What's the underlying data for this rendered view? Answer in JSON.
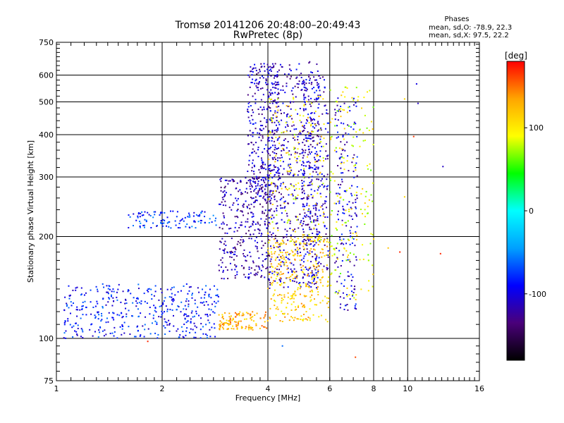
{
  "header": {
    "title_line1": "Tromsø 20141206 20:48:00–20:49:43",
    "title_line2": "RwPretec (8p)"
  },
  "phase_box": {
    "heading": "Phases",
    "line1": "mean, sd,O: -78.9, 22.3",
    "line2": "mean, sd,X:  97.5, 22.2"
  },
  "chart_data": {
    "type": "scatter",
    "title": "Tromsø 20141206 20:48:00–20:49:43",
    "subtitle": "RwPretec (8p)",
    "xlabel": "Frequency [MHz]",
    "ylabel": "Stationary phase Virtual Height [km]",
    "x_scale": "log2",
    "y_scale": "log",
    "xlim": [
      1,
      16
    ],
    "ylim": [
      75,
      750
    ],
    "x_ticks": [
      1,
      2,
      4,
      6,
      8,
      10,
      16
    ],
    "x_tick_labels": [
      "1",
      "2",
      "4",
      "6",
      "8",
      "10",
      "16"
    ],
    "x_major_grid": [
      2,
      4,
      6,
      8,
      10
    ],
    "y_ticks": [
      75,
      100,
      200,
      300,
      400,
      500,
      600,
      750
    ],
    "y_tick_labels": [
      "75",
      "100",
      "200",
      "300",
      "400",
      "500",
      "600",
      "750"
    ],
    "y_major_grid": [
      100,
      200,
      300,
      400,
      500,
      600
    ],
    "grid": true,
    "colorbar": {
      "label": "[deg]",
      "range": [
        -180,
        180
      ],
      "ticks": [
        100,
        0,
        -100
      ],
      "tick_labels": [
        "100",
        "0",
        "-100"
      ],
      "colors": [
        "#000000",
        "#4a007a",
        "#0000ff",
        "#00a0ff",
        "#00ffff",
        "#00ff00",
        "#ffff00",
        "#ffa500",
        "#ff0000"
      ]
    },
    "series": [
      {
        "clusters": [
          {
            "x": [
              1.05,
              2.9
            ],
            "h": [
              100,
              145
            ],
            "phase": -85,
            "n": 420
          },
          {
            "x": [
              1.6,
              2.85
            ],
            "h": [
              212,
              238
            ],
            "phase": -78,
            "n": 110
          },
          {
            "x": [
              2.9,
              4.0
            ],
            "h": [
              150,
              300
            ],
            "phase": -118,
            "n": 320
          },
          {
            "x": [
              3.5,
              4.3
            ],
            "h": [
              250,
              650
            ],
            "phase": -112,
            "n": 320
          },
          {
            "x": [
              4.0,
              5.6
            ],
            "h": [
              140,
              660
            ],
            "phase": -112,
            "n": 560
          },
          {
            "x": [
              5.0,
              5.95
            ],
            "h": [
              150,
              600
            ],
            "phase": -108,
            "n": 260
          },
          {
            "x": [
              6.2,
              7.2
            ],
            "h": [
              120,
              520
            ],
            "phase": -102,
            "n": 180
          }
        ]
      },
      {
        "clusters": [
          {
            "x": [
              2.9,
              4.0
            ],
            "h": [
              106,
              120
            ],
            "phase": 130,
            "n": 120
          },
          {
            "x": [
              4.0,
              6.0
            ],
            "h": [
              112,
              200
            ],
            "phase": 115,
            "n": 320
          },
          {
            "x": [
              4.0,
              5.8
            ],
            "h": [
              190,
              520
            ],
            "phase": 100,
            "n": 180
          },
          {
            "x": [
              6.0,
              8.0
            ],
            "h": [
              130,
              560
            ],
            "phase": 90,
            "n": 180
          }
        ]
      }
    ],
    "outliers": [
      {
        "x": 10.6,
        "h": 565,
        "phase": -100
      },
      {
        "x": 10.7,
        "h": 495,
        "phase": -110
      },
      {
        "x": 12.6,
        "h": 322,
        "phase": -110
      },
      {
        "x": 12.4,
        "h": 178,
        "phase": 170
      },
      {
        "x": 10.4,
        "h": 395,
        "phase": 165
      },
      {
        "x": 9.8,
        "h": 262,
        "phase": 110
      },
      {
        "x": 9.5,
        "h": 180,
        "phase": 170
      },
      {
        "x": 8.8,
        "h": 185,
        "phase": 120
      },
      {
        "x": 7.1,
        "h": 88,
        "phase": 160
      },
      {
        "x": 4.4,
        "h": 95,
        "phase": -60
      },
      {
        "x": 1.82,
        "h": 98,
        "phase": 170
      },
      {
        "x": 9.8,
        "h": 510,
        "phase": 110
      }
    ]
  }
}
